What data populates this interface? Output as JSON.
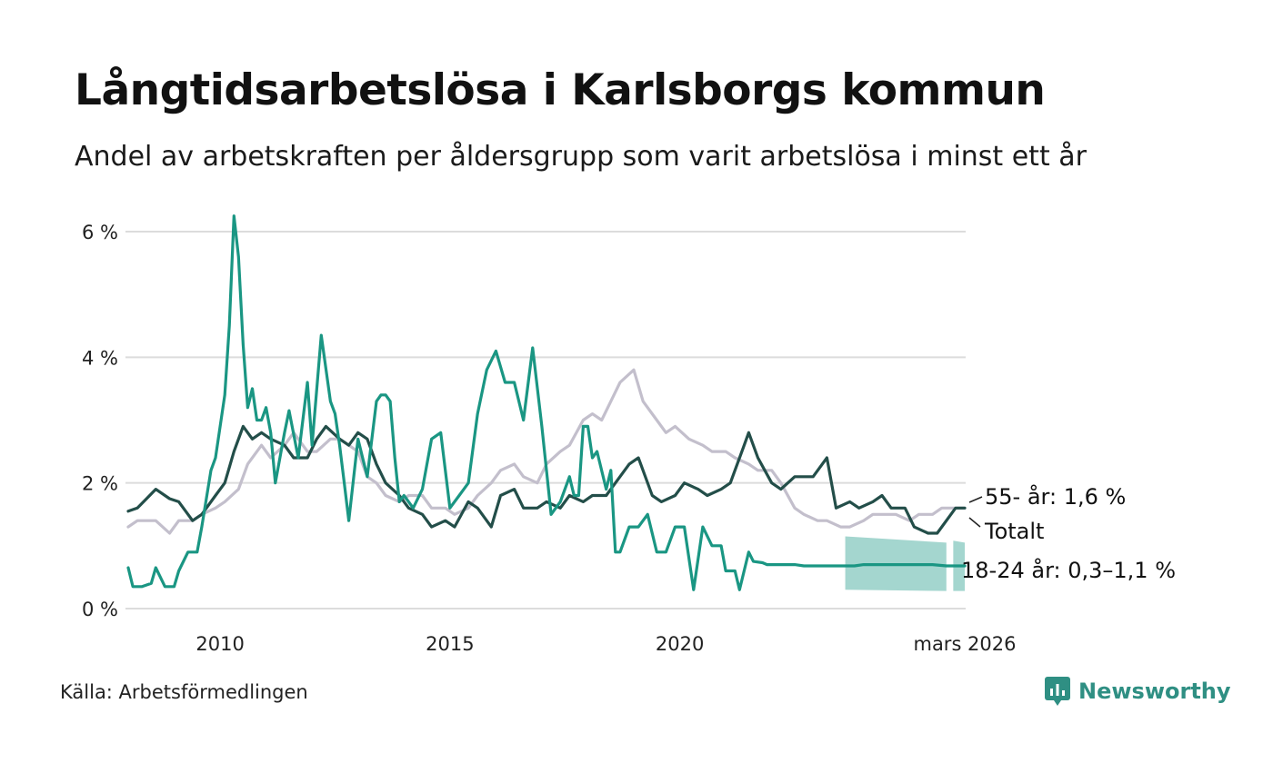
{
  "title": "Långtidsarbetslösa i Karlsborgs kommun",
  "subtitle": "Andel av arbetskraften per åldersgrupp som varit arbetslösa i minst ett år",
  "source": "Källa: Arbetsförmedlingen",
  "brand": "Newsworthy",
  "colors": {
    "totalt": "#234e49",
    "age55": "#c3bfcc",
    "age1824": "#1a9683",
    "band": "#a4d6cf",
    "grid": "#dcdcdc",
    "brand": "#2f8f83"
  },
  "chart_data": {
    "type": "line",
    "ylim": [
      0,
      6.3
    ],
    "xlim": [
      2008.0,
      2026.25
    ],
    "yticks": [
      {
        "v": 0,
        "label": "0 %"
      },
      {
        "v": 2,
        "label": "2 %"
      },
      {
        "v": 4,
        "label": "4 %"
      },
      {
        "v": 6,
        "label": "6 %"
      }
    ],
    "xticks": [
      {
        "v": 2010,
        "label": "2010"
      },
      {
        "v": 2015,
        "label": "2015"
      },
      {
        "v": 2020,
        "label": "2020"
      },
      {
        "v": 2026.2,
        "label": "mars 2026"
      }
    ],
    "grid": true,
    "series": [
      {
        "name": "55- år",
        "key": "age55",
        "end_label": "55- år: 1,6 %",
        "x": [
          2008.0,
          2008.2,
          2008.4,
          2008.6,
          2008.9,
          2009.1,
          2009.4,
          2009.6,
          2009.9,
          2010.1,
          2010.4,
          2010.6,
          2010.9,
          2011.1,
          2011.4,
          2011.6,
          2011.9,
          2012.1,
          2012.4,
          2012.6,
          2012.8,
          2013.0,
          2013.2,
          2013.4,
          2013.6,
          2013.9,
          2014.1,
          2014.4,
          2014.6,
          2014.9,
          2015.1,
          2015.4,
          2015.6,
          2015.9,
          2016.1,
          2016.4,
          2016.6,
          2016.9,
          2017.1,
          2017.4,
          2017.6,
          2017.9,
          2018.1,
          2018.3,
          2018.5,
          2018.7,
          2019.0,
          2019.2,
          2019.5,
          2019.7,
          2019.9,
          2020.2,
          2020.5,
          2020.7,
          2021.0,
          2021.2,
          2021.5,
          2021.7,
          2022.0,
          2022.2,
          2022.5,
          2022.7,
          2023.0,
          2023.2,
          2023.5,
          2023.7,
          2024.0,
          2024.2,
          2024.5,
          2024.7,
          2025.0,
          2025.2,
          2025.5,
          2025.7,
          2026.0,
          2026.2
        ],
        "values": [
          1.3,
          1.4,
          1.4,
          1.4,
          1.2,
          1.4,
          1.4,
          1.5,
          1.6,
          1.7,
          1.9,
          2.3,
          2.6,
          2.4,
          2.6,
          2.8,
          2.5,
          2.5,
          2.7,
          2.7,
          2.6,
          2.5,
          2.1,
          2.0,
          1.8,
          1.7,
          1.8,
          1.8,
          1.6,
          1.6,
          1.5,
          1.6,
          1.8,
          2.0,
          2.2,
          2.3,
          2.1,
          2.0,
          2.3,
          2.5,
          2.6,
          3.0,
          3.1,
          3.0,
          3.3,
          3.6,
          3.8,
          3.3,
          3.0,
          2.8,
          2.9,
          2.7,
          2.6,
          2.5,
          2.5,
          2.4,
          2.3,
          2.2,
          2.2,
          2.0,
          1.6,
          1.5,
          1.4,
          1.4,
          1.3,
          1.3,
          1.4,
          1.5,
          1.5,
          1.5,
          1.4,
          1.5,
          1.5,
          1.6,
          1.6,
          1.6
        ]
      },
      {
        "name": "Totalt",
        "key": "totalt",
        "end_label": "Totalt",
        "x": [
          2008.0,
          2008.2,
          2008.4,
          2008.6,
          2008.9,
          2009.1,
          2009.4,
          2009.6,
          2009.9,
          2010.1,
          2010.3,
          2010.5,
          2010.7,
          2010.9,
          2011.1,
          2011.4,
          2011.6,
          2011.9,
          2012.1,
          2012.3,
          2012.6,
          2012.8,
          2013.0,
          2013.2,
          2013.4,
          2013.6,
          2013.9,
          2014.1,
          2014.4,
          2014.6,
          2014.9,
          2015.1,
          2015.4,
          2015.6,
          2015.9,
          2016.1,
          2016.4,
          2016.6,
          2016.9,
          2017.1,
          2017.4,
          2017.6,
          2017.9,
          2018.1,
          2018.4,
          2018.6,
          2018.9,
          2019.1,
          2019.4,
          2019.6,
          2019.9,
          2020.1,
          2020.4,
          2020.6,
          2020.9,
          2021.1,
          2021.4,
          2021.5,
          2021.7,
          2022.0,
          2022.2,
          2022.5,
          2022.7,
          2022.9,
          2023.2,
          2023.4,
          2023.7,
          2023.9,
          2024.2,
          2024.4,
          2024.6,
          2024.9,
          2025.1,
          2025.4,
          2025.6,
          2025.9,
          2026.0,
          2026.2
        ],
        "values": [
          1.55,
          1.6,
          1.75,
          1.9,
          1.75,
          1.7,
          1.4,
          1.5,
          1.8,
          2.0,
          2.5,
          2.9,
          2.7,
          2.8,
          2.7,
          2.6,
          2.4,
          2.4,
          2.7,
          2.9,
          2.7,
          2.6,
          2.8,
          2.7,
          2.3,
          2.0,
          1.8,
          1.6,
          1.5,
          1.3,
          1.4,
          1.3,
          1.7,
          1.6,
          1.3,
          1.8,
          1.9,
          1.6,
          1.6,
          1.7,
          1.6,
          1.8,
          1.7,
          1.8,
          1.8,
          2.0,
          2.3,
          2.4,
          1.8,
          1.7,
          1.8,
          2.0,
          1.9,
          1.8,
          1.9,
          2.0,
          2.6,
          2.8,
          2.4,
          2.0,
          1.9,
          2.1,
          2.1,
          2.1,
          2.4,
          1.6,
          1.7,
          1.6,
          1.7,
          1.8,
          1.6,
          1.6,
          1.3,
          1.2,
          1.2,
          1.5,
          1.6,
          1.6
        ]
      },
      {
        "name": "18-24 år",
        "key": "age1824",
        "end_label": "18-24 år: 0,3–1,1 %",
        "x": [
          2008.0,
          2008.1,
          2008.3,
          2008.5,
          2008.6,
          2008.8,
          2009.0,
          2009.1,
          2009.3,
          2009.5,
          2009.6,
          2009.8,
          2009.9,
          2010.1,
          2010.2,
          2010.3,
          2010.4,
          2010.5,
          2010.6,
          2010.7,
          2010.8,
          2010.9,
          2011.0,
          2011.1,
          2011.2,
          2011.4,
          2011.5,
          2011.7,
          2011.9,
          2012.0,
          2012.2,
          2012.4,
          2012.5,
          2012.6,
          2012.7,
          2012.8,
          2013.0,
          2013.2,
          2013.4,
          2013.5,
          2013.6,
          2013.7,
          2013.8,
          2013.9,
          2014.0,
          2014.2,
          2014.4,
          2014.6,
          2014.8,
          2015.0,
          2015.2,
          2015.4,
          2015.6,
          2015.8,
          2016.0,
          2016.2,
          2016.4,
          2016.6,
          2016.8,
          2017.0,
          2017.2,
          2017.4,
          2017.6,
          2017.7,
          2017.8,
          2017.9,
          2018.0,
          2018.1,
          2018.2,
          2018.4,
          2018.5,
          2018.6,
          2018.7,
          2018.9,
          2019.1,
          2019.3,
          2019.5,
          2019.7,
          2019.9,
          2020.1,
          2020.3,
          2020.5,
          2020.7,
          2020.9,
          2021.0,
          2021.2,
          2021.3,
          2021.5,
          2021.6,
          2021.8,
          2021.9,
          2022.1,
          2022.2,
          2022.3,
          2022.5,
          2022.7,
          2022.8,
          2022.9,
          2023.1,
          2023.3,
          2023.5,
          2023.6,
          2023.8,
          2024.0,
          2024.5,
          2025.0,
          2025.5,
          2025.8,
          2026.0,
          2026.2
        ],
        "values": [
          0.65,
          0.35,
          0.35,
          0.4,
          0.65,
          0.35,
          0.35,
          0.6,
          0.9,
          0.9,
          1.3,
          2.2,
          2.4,
          3.4,
          4.5,
          6.25,
          5.6,
          4.2,
          3.2,
          3.5,
          3.0,
          3.0,
          3.2,
          2.8,
          2.0,
          2.8,
          3.15,
          2.4,
          3.6,
          2.6,
          4.35,
          3.3,
          3.1,
          2.6,
          2.0,
          1.4,
          2.7,
          2.1,
          3.3,
          3.4,
          3.4,
          3.3,
          2.4,
          1.7,
          1.8,
          1.6,
          1.9,
          2.7,
          2.8,
          1.6,
          1.8,
          2.0,
          3.1,
          3.8,
          4.1,
          3.6,
          3.6,
          3.0,
          4.15,
          2.9,
          1.5,
          1.7,
          2.1,
          1.8,
          1.8,
          2.9,
          2.9,
          2.4,
          2.5,
          1.9,
          2.2,
          0.9,
          0.9,
          1.3,
          1.3,
          1.5,
          0.9,
          0.9,
          1.3,
          1.3,
          0.3,
          1.3,
          1.0,
          1.0,
          0.6,
          0.6,
          0.3,
          0.9,
          0.75,
          0.73,
          0.7,
          0.7,
          0.7,
          0.7,
          0.7,
          0.68,
          0.68,
          0.68,
          0.68,
          0.68,
          0.68,
          0.68,
          0.68,
          0.7,
          0.7,
          0.7,
          0.7,
          0.68,
          0.68,
          0.68
        ]
      }
    ],
    "band": {
      "name": "18-24 år intervall",
      "x": [
        2023.6,
        2025.8
      ],
      "lower": [
        0.3,
        0.28
      ],
      "upper": [
        1.15,
        1.05
      ]
    }
  }
}
